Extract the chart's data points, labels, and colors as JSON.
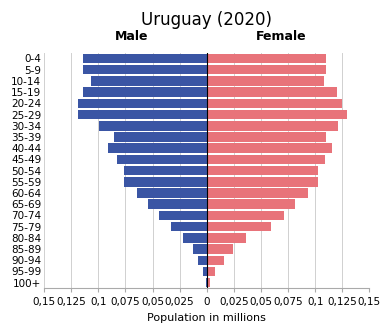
{
  "title": "Uruguay (2020)",
  "xlabel": "Population in millions",
  "male_label": "Male",
  "female_label": "Female",
  "age_groups": [
    "100+",
    "95-99",
    "90-94",
    "85-89",
    "80-84",
    "75-79",
    "70-74",
    "65-69",
    "60-64",
    "55-59",
    "50-54",
    "45-49",
    "40-44",
    "35-39",
    "30-34",
    "25-29",
    "20-24",
    "15-19",
    "10-14",
    "5-9",
    "0-4"
  ],
  "male_values": [
    0.001,
    0.003,
    0.008,
    0.013,
    0.022,
    0.033,
    0.044,
    0.054,
    0.064,
    0.076,
    0.076,
    0.083,
    0.091,
    0.086,
    0.099,
    0.119,
    0.119,
    0.114,
    0.107,
    0.114,
    0.114
  ],
  "female_values": [
    0.003,
    0.008,
    0.016,
    0.024,
    0.036,
    0.059,
    0.071,
    0.081,
    0.093,
    0.103,
    0.103,
    0.109,
    0.116,
    0.11,
    0.121,
    0.129,
    0.125,
    0.12,
    0.108,
    0.11,
    0.11
  ],
  "male_color": "#3a55a4",
  "female_color": "#e8737a",
  "background_color": "#ffffff",
  "xlim": 0.15,
  "grid_color": "#d0d0d0",
  "title_fontsize": 12,
  "label_fontsize": 8,
  "tick_fontsize": 7.5
}
